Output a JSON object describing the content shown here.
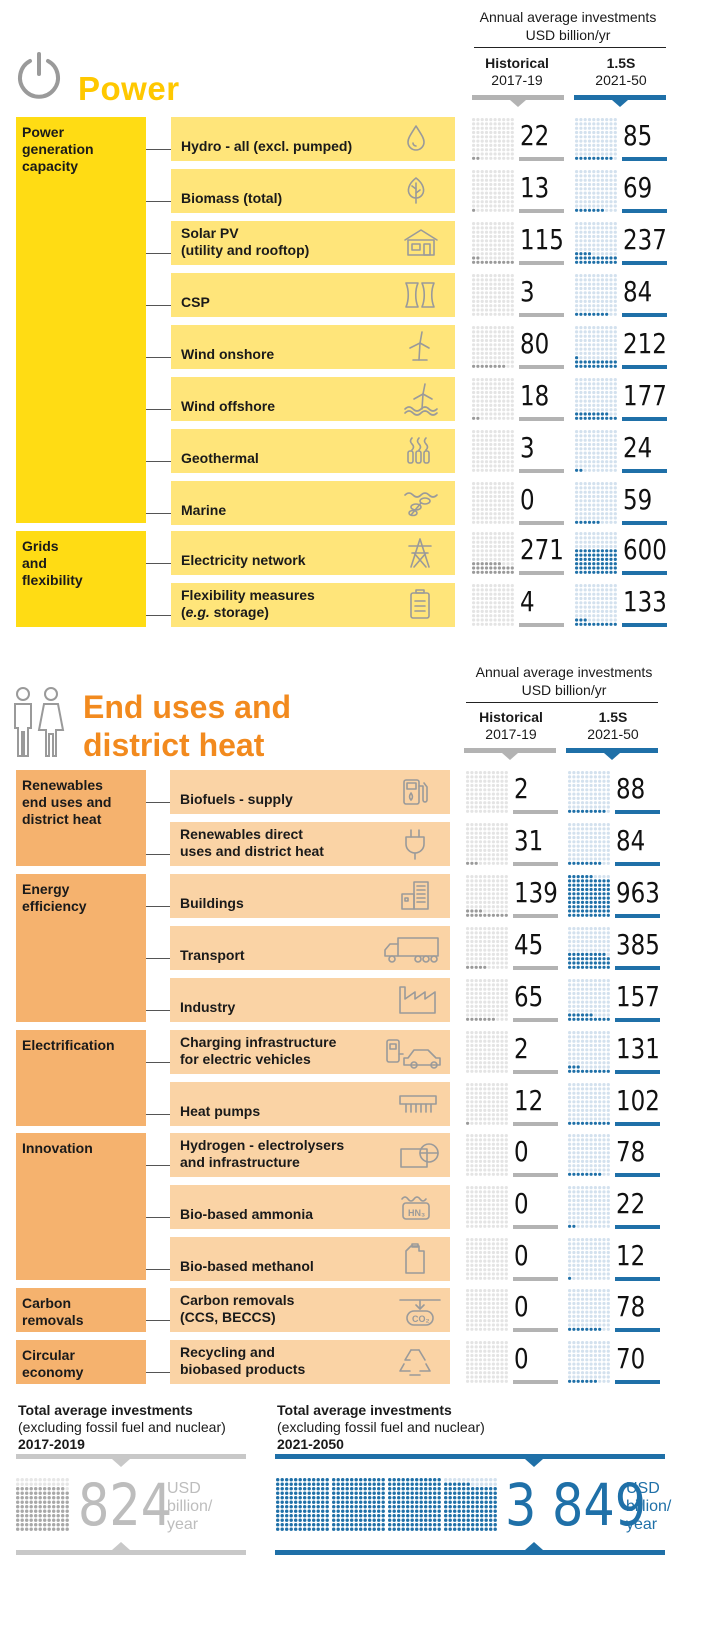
{
  "colors": {
    "power_yellow": "#ffdc14",
    "power_row": "#ffe57a",
    "power_title": "#ffc800",
    "end_cat": "#f5b26e",
    "end_row": "#fad3a5",
    "end_title": "#f28a1e",
    "hist_line": "#b3b3b3",
    "hist_dot_fill": "#9a9a9a",
    "proj_line": "#1f70a8",
    "proj_dot_fill": "#1f70a8",
    "dot_empty_grey": "#e4e4e4",
    "dot_empty_blue": "#d3e1ee"
  },
  "power": {
    "header": {
      "line1": "Annual average investments",
      "line2": "USD billion/yr"
    },
    "columns": {
      "historical": {
        "label": "Historical",
        "period": "2017-19"
      },
      "projection": {
        "label": "1.5S",
        "period": "2021-50"
      }
    },
    "title": "Power",
    "icon": "power-button-icon",
    "categories": [
      {
        "label_lines": [
          "Power",
          "generation",
          "capacity"
        ]
      },
      {
        "label_lines": [
          "Grids",
          "and",
          "flexibility"
        ]
      }
    ]
  },
  "end_uses": {
    "header": {
      "line1": "Annual average investments",
      "line2": "USD billion/yr"
    },
    "columns": {
      "historical": {
        "label": "Historical",
        "period": "2017-19"
      },
      "projection": {
        "label": "1.5S",
        "period": "2021-50"
      }
    },
    "title_lines": [
      "End uses and",
      "district heat"
    ],
    "icon": "people-icon",
    "categories": [
      {
        "label_lines": [
          "Renewables",
          "end uses and",
          "district heat"
        ]
      },
      {
        "label_lines": [
          "Energy",
          "efficiency"
        ]
      },
      {
        "label_lines": [
          "Electrification"
        ]
      },
      {
        "label_lines": [
          "Innovation"
        ]
      },
      {
        "label_lines": [
          "Carbon",
          "removals"
        ]
      },
      {
        "label_lines": [
          "Circular",
          "economy"
        ]
      }
    ]
  },
  "totals": {
    "historical": {
      "label_line1": "Total average investments",
      "label_line2": "(excluding fossil fuel and nuclear)",
      "period": "2017-2019",
      "value": "824",
      "unit_lines": [
        "USD",
        "billion/",
        "year"
      ]
    },
    "projection": {
      "label_line1": "Total average investments",
      "label_line2": "(excluding fossil fuel and nuclear)",
      "period": "2021-2050",
      "value": "3 849",
      "unit_lines": [
        "USD",
        "billion/",
        "year"
      ]
    }
  },
  "chart_data": {
    "type": "table",
    "title": "Annual average investments (USD billion/yr)",
    "series": [
      {
        "name": "Historical 2017-19"
      },
      {
        "name": "1.5S 2021-50"
      }
    ],
    "rows": [
      {
        "section": "Power",
        "category": "Power generation capacity",
        "label_lines": [
          "Hydro - all (excl. pumped)"
        ],
        "icon": "water-drop-icon",
        "historical": 22,
        "projection": 85
      },
      {
        "section": "Power",
        "category": "Power generation capacity",
        "label_lines": [
          "Biomass (total)"
        ],
        "icon": "leaf-icon",
        "historical": 13,
        "projection": 69
      },
      {
        "section": "Power",
        "category": "Power generation capacity",
        "label_lines": [
          "Solar PV",
          "(utility and rooftop)"
        ],
        "icon": "solar-house-icon",
        "historical": 115,
        "projection": 237
      },
      {
        "section": "Power",
        "category": "Power generation capacity",
        "label_lines": [
          "CSP"
        ],
        "icon": "csp-mirror-icon",
        "historical": 3,
        "projection": 84
      },
      {
        "section": "Power",
        "category": "Power generation capacity",
        "label_lines": [
          "Wind onshore"
        ],
        "icon": "wind-turbine-icon",
        "historical": 80,
        "projection": 212
      },
      {
        "section": "Power",
        "category": "Power generation capacity",
        "label_lines": [
          "Wind offshore"
        ],
        "icon": "offshore-wind-icon",
        "historical": 18,
        "projection": 177
      },
      {
        "section": "Power",
        "category": "Power generation capacity",
        "label_lines": [
          "Geothermal"
        ],
        "icon": "geothermal-icon",
        "historical": 3,
        "projection": 24
      },
      {
        "section": "Power",
        "category": "Power generation capacity",
        "label_lines": [
          "Marine"
        ],
        "icon": "marine-icon",
        "historical": 0,
        "projection": 59
      },
      {
        "section": "Power",
        "category": "Grids and flexibility",
        "label_lines": [
          "Electricity network"
        ],
        "icon": "transmission-tower-icon",
        "historical": 271,
        "projection": 600
      },
      {
        "section": "Power",
        "category": "Grids and flexibility",
        "label_lines": [
          "Flexibility measures",
          "(e.g. storage)"
        ],
        "icon": "battery-icon",
        "historical": 4,
        "projection": 133
      },
      {
        "section": "End uses",
        "category": "Renewables end uses and district heat",
        "label_lines": [
          "Biofuels - supply"
        ],
        "icon": "fuel-pump-icon",
        "historical": 2,
        "projection": 88
      },
      {
        "section": "End uses",
        "category": "Renewables end uses and district heat",
        "label_lines": [
          "Renewables direct",
          "uses and district heat"
        ],
        "icon": "plug-icon",
        "historical": 31,
        "projection": 84
      },
      {
        "section": "End uses",
        "category": "Energy efficiency",
        "label_lines": [
          "Buildings"
        ],
        "icon": "building-icon",
        "historical": 139,
        "projection": 963
      },
      {
        "section": "End uses",
        "category": "Energy efficiency",
        "label_lines": [
          "Transport"
        ],
        "icon": "truck-icon",
        "historical": 45,
        "projection": 385
      },
      {
        "section": "End uses",
        "category": "Energy efficiency",
        "label_lines": [
          "Industry"
        ],
        "icon": "factory-icon",
        "historical": 65,
        "projection": 157
      },
      {
        "section": "End uses",
        "category": "Electrification",
        "label_lines": [
          "Charging infrastructure",
          "for electric vehicles"
        ],
        "icon": "ev-charging-icon",
        "historical": 2,
        "projection": 131
      },
      {
        "section": "End uses",
        "category": "Electrification",
        "label_lines": [
          "Heat pumps"
        ],
        "icon": "heat-pump-icon",
        "historical": 12,
        "projection": 102
      },
      {
        "section": "End uses",
        "category": "Innovation",
        "label_lines": [
          "Hydrogen - electrolysers",
          "and infrastructure"
        ],
        "icon": "hydrogen-tank-icon",
        "historical": 0,
        "projection": 78
      },
      {
        "section": "End uses",
        "category": "Innovation",
        "label_lines": [
          "Bio-based ammonia"
        ],
        "icon": "ammonia-icon",
        "historical": 0,
        "projection": 22
      },
      {
        "section": "End uses",
        "category": "Innovation",
        "label_lines": [
          "Bio-based methanol"
        ],
        "icon": "methanol-canister-icon",
        "historical": 0,
        "projection": 12
      },
      {
        "section": "End uses",
        "category": "Carbon removals",
        "label_lines": [
          "Carbon removals",
          "(CCS, BECCS)"
        ],
        "icon": "co2-capture-icon",
        "historical": 0,
        "projection": 78
      },
      {
        "section": "End uses",
        "category": "Circular economy",
        "label_lines": [
          "Recycling and",
          "biobased products"
        ],
        "icon": "recycle-icon",
        "historical": 0,
        "projection": 70
      }
    ],
    "totals": {
      "historical": 824,
      "projection": 3849
    },
    "units": "USD billion/yr"
  }
}
